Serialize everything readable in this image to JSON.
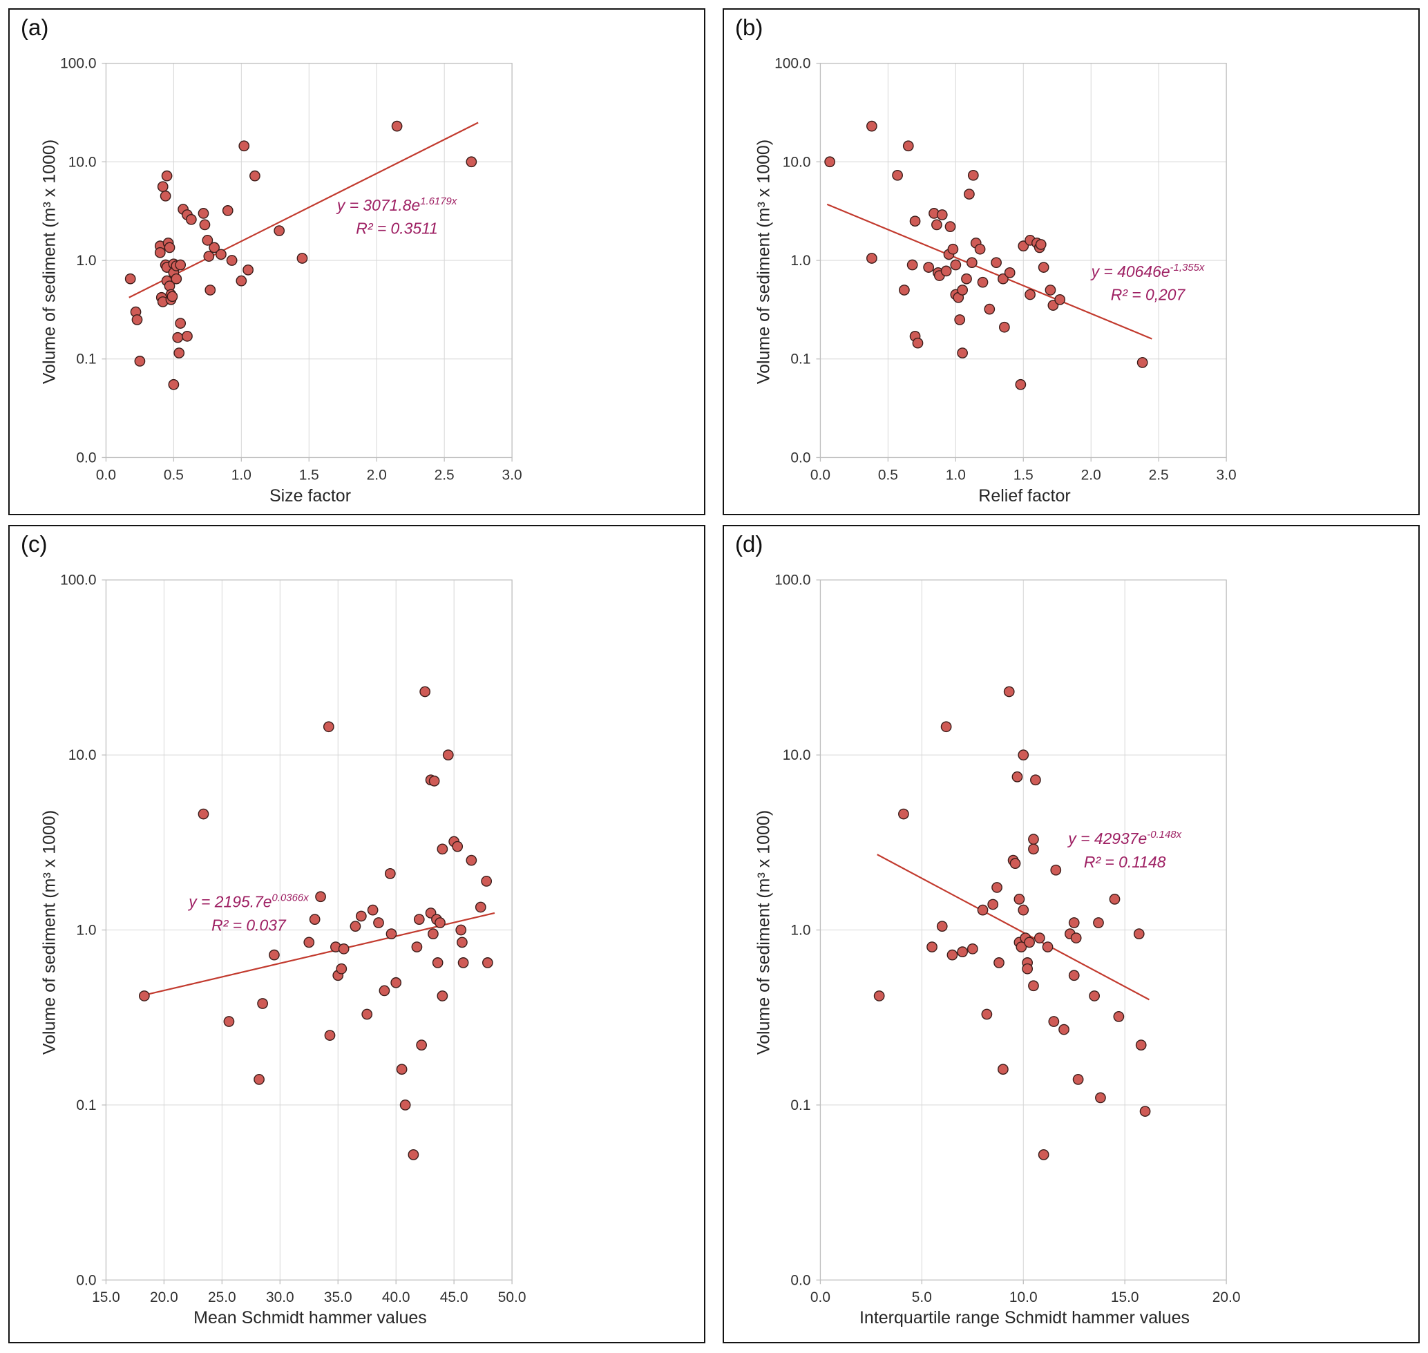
{
  "styles": {
    "marker_fill": "#cf5b56",
    "marker_stroke": "#3b1d1a",
    "trend_color": "#c23a2e",
    "equation_color": "#9e2063",
    "grid_color": "#d6d6d6",
    "axis_color": "#bfbfbf",
    "text_color": "#262626"
  },
  "chart_data": [
    {
      "type": "scatter",
      "panel_label": "(a)",
      "xlabel": "Size factor",
      "ylabel": "Volume of sediment (m³ x 1000)",
      "x_min": 0,
      "x_max": 3,
      "x_tick_values": [
        0,
        0.5,
        1.0,
        1.5,
        2.0,
        2.5,
        3.0
      ],
      "x_tick_labels": [
        "0.0",
        "0.5",
        "1.0",
        "1.5",
        "2.0",
        "2.5",
        "3.0"
      ],
      "y_min": 0.01,
      "y_max": 100,
      "y_tick_values": [
        0.01,
        0.1,
        1,
        10,
        100
      ],
      "y_tick_labels": [
        "0.0",
        "0.1",
        "1.0",
        "10.0",
        "100.0"
      ],
      "grid": true,
      "legend": "none",
      "points": [
        [
          0.18,
          0.65
        ],
        [
          0.22,
          0.3
        ],
        [
          0.23,
          0.25
        ],
        [
          0.25,
          0.095
        ],
        [
          0.4,
          1.4
        ],
        [
          0.4,
          1.2
        ],
        [
          0.41,
          0.42
        ],
        [
          0.42,
          0.38
        ],
        [
          0.42,
          5.6
        ],
        [
          0.45,
          7.2
        ],
        [
          0.44,
          4.5
        ],
        [
          0.44,
          0.9
        ],
        [
          0.45,
          0.85
        ],
        [
          0.45,
          0.62
        ],
        [
          0.46,
          1.5
        ],
        [
          0.47,
          1.35
        ],
        [
          0.47,
          0.55
        ],
        [
          0.48,
          0.45
        ],
        [
          0.48,
          0.4
        ],
        [
          0.49,
          0.43
        ],
        [
          0.5,
          0.92
        ],
        [
          0.5,
          0.75
        ],
        [
          0.5,
          0.055
        ],
        [
          0.52,
          0.88
        ],
        [
          0.52,
          0.65
        ],
        [
          0.53,
          0.165
        ],
        [
          0.54,
          0.115
        ],
        [
          0.55,
          0.9
        ],
        [
          0.55,
          0.23
        ],
        [
          0.57,
          3.3
        ],
        [
          0.6,
          2.9
        ],
        [
          0.6,
          0.17
        ],
        [
          0.63,
          2.6
        ],
        [
          0.72,
          3.0
        ],
        [
          0.73,
          2.3
        ],
        [
          0.75,
          1.6
        ],
        [
          0.76,
          1.1
        ],
        [
          0.77,
          0.5
        ],
        [
          0.8,
          1.35
        ],
        [
          0.85,
          1.15
        ],
        [
          0.9,
          3.2
        ],
        [
          0.93,
          1.0
        ],
        [
          1.0,
          0.62
        ],
        [
          1.02,
          14.5
        ],
        [
          1.05,
          0.8
        ],
        [
          1.1,
          7.2
        ],
        [
          1.28,
          2.0
        ],
        [
          1.45,
          1.05
        ],
        [
          2.15,
          23.0
        ],
        [
          2.7,
          10.0
        ]
      ],
      "trendline": {
        "x_start": 0.17,
        "y_start": 0.42,
        "x_end": 2.75,
        "y_end": 25.0
      },
      "equation": {
        "prefix": "y = 3071.8e",
        "superscript": "1.6179x",
        "r2": "R² = 0.3511",
        "anchor_x": 2.15,
        "anchor_y": 3.2
      }
    },
    {
      "type": "scatter",
      "panel_label": "(b)",
      "xlabel": "Relief factor",
      "ylabel": "Volume of sediment (m³ x 1000)",
      "x_min": 0,
      "x_max": 3,
      "x_tick_values": [
        0,
        0.5,
        1.0,
        1.5,
        2.0,
        2.5,
        3.0
      ],
      "x_tick_labels": [
        "0.0",
        "0.5",
        "1.0",
        "1.5",
        "2.0",
        "2.5",
        "3.0"
      ],
      "y_min": 0.01,
      "y_max": 100,
      "y_tick_values": [
        0.01,
        0.1,
        1,
        10,
        100
      ],
      "y_tick_labels": [
        "0.0",
        "0.1",
        "1.0",
        "10.0",
        "100.0"
      ],
      "grid": true,
      "legend": "none",
      "points": [
        [
          0.07,
          10.0
        ],
        [
          0.38,
          23.0
        ],
        [
          0.38,
          1.05
        ],
        [
          0.57,
          7.3
        ],
        [
          0.62,
          0.5
        ],
        [
          0.65,
          14.5
        ],
        [
          0.68,
          0.9
        ],
        [
          0.7,
          2.5
        ],
        [
          0.7,
          0.17
        ],
        [
          0.72,
          0.145
        ],
        [
          0.8,
          0.85
        ],
        [
          0.84,
          3.0
        ],
        [
          0.86,
          2.3
        ],
        [
          0.87,
          0.75
        ],
        [
          0.88,
          0.7
        ],
        [
          0.9,
          2.9
        ],
        [
          0.93,
          0.78
        ],
        [
          0.95,
          1.15
        ],
        [
          0.96,
          2.2
        ],
        [
          0.98,
          1.3
        ],
        [
          1.0,
          0.9
        ],
        [
          1.0,
          0.45
        ],
        [
          1.02,
          0.42
        ],
        [
          1.03,
          0.25
        ],
        [
          1.05,
          0.5
        ],
        [
          1.05,
          0.115
        ],
        [
          1.08,
          0.65
        ],
        [
          1.1,
          4.7
        ],
        [
          1.12,
          0.95
        ],
        [
          1.13,
          7.3
        ],
        [
          1.15,
          1.5
        ],
        [
          1.18,
          1.3
        ],
        [
          1.2,
          0.6
        ],
        [
          1.25,
          0.32
        ],
        [
          1.3,
          0.95
        ],
        [
          1.35,
          0.65
        ],
        [
          1.36,
          0.21
        ],
        [
          1.4,
          0.75
        ],
        [
          1.48,
          0.055
        ],
        [
          1.5,
          1.4
        ],
        [
          1.55,
          1.6
        ],
        [
          1.55,
          0.45
        ],
        [
          1.6,
          1.5
        ],
        [
          1.62,
          1.35
        ],
        [
          1.63,
          1.45
        ],
        [
          1.65,
          0.85
        ],
        [
          1.7,
          0.5
        ],
        [
          1.72,
          0.35
        ],
        [
          1.77,
          0.4
        ],
        [
          2.38,
          0.092
        ]
      ],
      "trendline": {
        "x_start": 0.05,
        "y_start": 3.7,
        "x_end": 2.45,
        "y_end": 0.16
      },
      "equation": {
        "prefix": "y = 40646e",
        "superscript": "-1,355x",
        "r2": "R² = 0,207",
        "anchor_x": 2.42,
        "anchor_y": 0.68
      }
    },
    {
      "type": "scatter",
      "panel_label": "(c)",
      "xlabel": "Mean Schmidt hammer values",
      "ylabel": "Volume of sediment (m³ x 1000)",
      "x_min": 15,
      "x_max": 50,
      "x_tick_values": [
        15,
        20,
        25,
        30,
        35,
        40,
        45,
        50
      ],
      "x_tick_labels": [
        "15.0",
        "20.0",
        "25.0",
        "30.0",
        "35.0",
        "40.0",
        "45.0",
        "50.0"
      ],
      "y_min": 0.01,
      "y_max": 100,
      "y_tick_values": [
        0.01,
        0.1,
        1,
        10,
        100
      ],
      "y_tick_labels": [
        "0.0",
        "0.1",
        "1.0",
        "10.0",
        "100.0"
      ],
      "grid": true,
      "legend": "none",
      "points": [
        [
          18.3,
          0.42
        ],
        [
          23.4,
          4.6
        ],
        [
          25.6,
          0.3
        ],
        [
          28.2,
          0.14
        ],
        [
          28.5,
          0.38
        ],
        [
          29.5,
          0.72
        ],
        [
          32.5,
          0.85
        ],
        [
          33.0,
          1.15
        ],
        [
          33.5,
          1.55
        ],
        [
          34.2,
          14.5
        ],
        [
          34.3,
          0.25
        ],
        [
          34.8,
          0.8
        ],
        [
          35.0,
          0.55
        ],
        [
          35.3,
          0.6
        ],
        [
          35.5,
          0.78
        ],
        [
          36.5,
          1.05
        ],
        [
          37.0,
          1.2
        ],
        [
          37.5,
          0.33
        ],
        [
          38.0,
          1.3
        ],
        [
          38.5,
          1.1
        ],
        [
          39.0,
          0.45
        ],
        [
          39.5,
          2.1
        ],
        [
          39.6,
          0.95
        ],
        [
          40.0,
          0.5
        ],
        [
          40.5,
          0.16
        ],
        [
          40.8,
          0.1
        ],
        [
          41.5,
          0.052
        ],
        [
          41.8,
          0.8
        ],
        [
          42.0,
          1.15
        ],
        [
          42.2,
          0.22
        ],
        [
          42.5,
          23.0
        ],
        [
          43.0,
          7.2
        ],
        [
          43.3,
          7.1
        ],
        [
          43.0,
          1.25
        ],
        [
          43.2,
          0.95
        ],
        [
          43.5,
          1.15
        ],
        [
          43.6,
          0.65
        ],
        [
          43.8,
          1.1
        ],
        [
          44.0,
          2.9
        ],
        [
          44.0,
          0.42
        ],
        [
          44.5,
          10.0
        ],
        [
          45.0,
          3.2
        ],
        [
          45.3,
          3.0
        ],
        [
          45.6,
          1.0
        ],
        [
          45.7,
          0.85
        ],
        [
          45.8,
          0.65
        ],
        [
          46.5,
          2.5
        ],
        [
          47.3,
          1.35
        ],
        [
          47.8,
          1.9
        ],
        [
          47.9,
          0.65
        ]
      ],
      "trendline": {
        "x_start": 18.0,
        "y_start": 0.42,
        "x_end": 48.5,
        "y_end": 1.25
      },
      "equation": {
        "prefix": "y = 2195.7e",
        "superscript": "0.0366x",
        "r2": "R² = 0.037",
        "anchor_x": 27.3,
        "anchor_y": 1.35
      }
    },
    {
      "type": "scatter",
      "panel_label": "(d)",
      "xlabel": "Interquartile range Schmidt hammer values",
      "ylabel": "Volume of sediment (m³ x 1000)",
      "x_min": 0,
      "x_max": 20,
      "x_tick_values": [
        0,
        5,
        10,
        15,
        20
      ],
      "x_tick_labels": [
        "0.0",
        "5.0",
        "10.0",
        "15.0",
        "20.0"
      ],
      "y_min": 0.01,
      "y_max": 100,
      "y_tick_values": [
        0.01,
        0.1,
        1,
        10,
        100
      ],
      "y_tick_labels": [
        "0.0",
        "0.1",
        "1.0",
        "10.0",
        "100.0"
      ],
      "grid": true,
      "legend": "none",
      "points": [
        [
          2.9,
          0.42
        ],
        [
          4.1,
          4.6
        ],
        [
          5.5,
          0.8
        ],
        [
          6.0,
          1.05
        ],
        [
          6.2,
          14.5
        ],
        [
          6.5,
          0.72
        ],
        [
          7.0,
          0.75
        ],
        [
          7.5,
          0.78
        ],
        [
          8.0,
          1.3
        ],
        [
          8.2,
          0.33
        ],
        [
          8.5,
          1.4
        ],
        [
          8.7,
          1.75
        ],
        [
          8.8,
          0.65
        ],
        [
          9.0,
          0.16
        ],
        [
          9.3,
          23.0
        ],
        [
          9.5,
          2.5
        ],
        [
          9.6,
          2.4
        ],
        [
          9.7,
          7.5
        ],
        [
          9.8,
          1.5
        ],
        [
          9.8,
          0.85
        ],
        [
          9.9,
          0.8
        ],
        [
          10.0,
          10.0
        ],
        [
          10.0,
          1.3
        ],
        [
          10.1,
          0.9
        ],
        [
          10.2,
          0.65
        ],
        [
          10.2,
          0.6
        ],
        [
          10.3,
          0.85
        ],
        [
          10.5,
          3.3
        ],
        [
          10.5,
          2.9
        ],
        [
          10.5,
          0.48
        ],
        [
          10.6,
          7.2
        ],
        [
          10.8,
          0.9
        ],
        [
          11.0,
          0.052
        ],
        [
          11.2,
          0.8
        ],
        [
          11.5,
          0.3
        ],
        [
          11.6,
          2.2
        ],
        [
          12.0,
          0.27
        ],
        [
          12.3,
          0.95
        ],
        [
          12.5,
          1.1
        ],
        [
          12.6,
          0.9
        ],
        [
          12.5,
          0.55
        ],
        [
          12.7,
          0.14
        ],
        [
          13.5,
          0.42
        ],
        [
          13.7,
          1.1
        ],
        [
          13.8,
          0.11
        ],
        [
          14.5,
          1.5
        ],
        [
          14.7,
          0.32
        ],
        [
          15.7,
          0.95
        ],
        [
          15.8,
          0.22
        ],
        [
          16.0,
          0.092
        ]
      ],
      "trendline": {
        "x_start": 2.8,
        "y_start": 2.7,
        "x_end": 16.2,
        "y_end": 0.4
      },
      "equation": {
        "prefix": "y = 42937e",
        "superscript": "-0.148x",
        "r2": "R² = 0.1148",
        "anchor_x": 15.0,
        "anchor_y": 3.1
      }
    }
  ]
}
